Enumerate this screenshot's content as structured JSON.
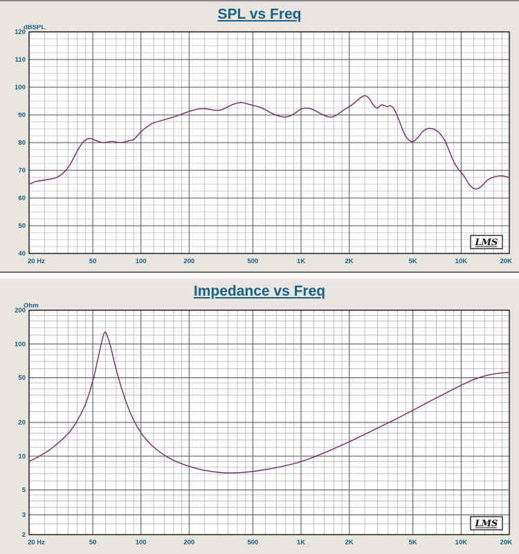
{
  "palette": {
    "background": "#e9e6e0",
    "plot_background": "#ffffff",
    "accent": "#1b6080",
    "curve": "#6d2a66",
    "grid_minor": "#9a9a9a",
    "grid_major": "#4d4d4d",
    "frame": "#000000"
  },
  "chart_data": [
    {
      "type": "line",
      "title": "SPL vs Freq",
      "ylabel": "dBSPL",
      "xlabel": "Hz",
      "badge": "LMS",
      "x_scale": "log",
      "y_scale": "linear",
      "xlim": [
        20,
        20000
      ],
      "ylim": [
        40,
        120
      ],
      "y_minor_step": 2.5,
      "line_color": "#6d2a66",
      "x_ticks": [
        {
          "f": 20,
          "label": "20 Hz"
        },
        {
          "f": 50,
          "label": "50"
        },
        {
          "f": 100,
          "label": "100"
        },
        {
          "f": 200,
          "label": "200"
        },
        {
          "f": 500,
          "label": "500"
        },
        {
          "f": 1000,
          "label": "1K"
        },
        {
          "f": 2000,
          "label": "2K"
        },
        {
          "f": 5000,
          "label": "5K"
        },
        {
          "f": 10000,
          "label": "10K"
        },
        {
          "f": 20000,
          "label": "20K"
        }
      ],
      "y_ticks": [
        {
          "v": 120,
          "label": "120"
        },
        {
          "v": 110,
          "label": "110"
        },
        {
          "v": 100,
          "label": "100"
        },
        {
          "v": 90,
          "label": "90"
        },
        {
          "v": 80,
          "label": "80"
        },
        {
          "v": 70,
          "label": "70"
        },
        {
          "v": 60,
          "label": "60"
        },
        {
          "v": 50,
          "label": "50"
        },
        {
          "v": 40,
          "label": "40"
        }
      ],
      "series": [
        {
          "name": "spl",
          "points": [
            [
              20,
              65
            ],
            [
              22,
              66
            ],
            [
              25,
              66.5
            ],
            [
              28,
              67
            ],
            [
              30,
              67.5
            ],
            [
              32,
              68.5
            ],
            [
              34,
              70
            ],
            [
              36,
              72
            ],
            [
              38,
              74.5
            ],
            [
              40,
              77
            ],
            [
              42,
              79
            ],
            [
              44,
              80.5
            ],
            [
              46,
              81.3
            ],
            [
              48,
              81.5
            ],
            [
              50,
              81.3
            ],
            [
              52,
              80.8
            ],
            [
              55,
              80.3
            ],
            [
              58,
              80
            ],
            [
              62,
              80.2
            ],
            [
              66,
              80.5
            ],
            [
              70,
              80.2
            ],
            [
              75,
              80
            ],
            [
              80,
              80.3
            ],
            [
              85,
              80.8
            ],
            [
              90,
              81
            ],
            [
              95,
              82.5
            ],
            [
              100,
              84
            ],
            [
              108,
              85.5
            ],
            [
              116,
              86.8
            ],
            [
              125,
              87.5
            ],
            [
              135,
              88
            ],
            [
              150,
              88.8
            ],
            [
              165,
              89.5
            ],
            [
              180,
              90.3
            ],
            [
              200,
              91.3
            ],
            [
              215,
              91.8
            ],
            [
              230,
              92.2
            ],
            [
              250,
              92.3
            ],
            [
              270,
              92
            ],
            [
              290,
              91.6
            ],
            [
              310,
              91.7
            ],
            [
              330,
              92.2
            ],
            [
              350,
              93
            ],
            [
              375,
              93.8
            ],
            [
              400,
              94.3
            ],
            [
              425,
              94.5
            ],
            [
              450,
              94.2
            ],
            [
              475,
              93.8
            ],
            [
              500,
              93.5
            ],
            [
              540,
              93
            ],
            [
              580,
              92.3
            ],
            [
              620,
              91.4
            ],
            [
              660,
              90.5
            ],
            [
              700,
              89.9
            ],
            [
              750,
              89.4
            ],
            [
              800,
              89.2
            ],
            [
              850,
              89.6
            ],
            [
              900,
              90.3
            ],
            [
              950,
              91.3
            ],
            [
              1000,
              92.2
            ],
            [
              1060,
              92.5
            ],
            [
              1120,
              92.4
            ],
            [
              1180,
              92
            ],
            [
              1250,
              91.3
            ],
            [
              1320,
              90.5
            ],
            [
              1400,
              89.8
            ],
            [
              1480,
              89.3
            ],
            [
              1560,
              89.2
            ],
            [
              1650,
              89.8
            ],
            [
              1750,
              90.8
            ],
            [
              1850,
              91.8
            ],
            [
              2000,
              93
            ],
            [
              2120,
              94
            ],
            [
              2250,
              95.3
            ],
            [
              2400,
              96.6
            ],
            [
              2500,
              97
            ],
            [
              2600,
              96.6
            ],
            [
              2700,
              95.5
            ],
            [
              2800,
              94
            ],
            [
              2900,
              92.8
            ],
            [
              3000,
              92.4
            ],
            [
              3100,
              93.2
            ],
            [
              3200,
              93.7
            ],
            [
              3300,
              93.4
            ],
            [
              3450,
              93
            ],
            [
              3600,
              93.4
            ],
            [
              3750,
              92.8
            ],
            [
              3900,
              91
            ],
            [
              4100,
              88
            ],
            [
              4300,
              84.8
            ],
            [
              4500,
              82.3
            ],
            [
              4700,
              81
            ],
            [
              4900,
              80.3
            ],
            [
              5100,
              80.6
            ],
            [
              5400,
              82
            ],
            [
              5700,
              83.8
            ],
            [
              6000,
              84.8
            ],
            [
              6300,
              85.2
            ],
            [
              6700,
              85
            ],
            [
              7100,
              84.2
            ],
            [
              7500,
              82.8
            ],
            [
              8000,
              80.3
            ],
            [
              8500,
              76.5
            ],
            [
              9000,
              73
            ],
            [
              9500,
              70.8
            ],
            [
              10000,
              69.3
            ],
            [
              10600,
              67.3
            ],
            [
              11200,
              65
            ],
            [
              11800,
              63.6
            ],
            [
              12400,
              63.2
            ],
            [
              13000,
              63.6
            ],
            [
              13700,
              64.8
            ],
            [
              14500,
              66.3
            ],
            [
              15300,
              67.2
            ],
            [
              16200,
              67.7
            ],
            [
              17100,
              68
            ],
            [
              18000,
              68
            ],
            [
              19000,
              67.8
            ],
            [
              20000,
              67.3
            ]
          ]
        }
      ]
    },
    {
      "type": "line",
      "title": "Impedance vs Freq",
      "ylabel": "Ohm",
      "xlabel": "Hz",
      "badge": "LMS",
      "x_scale": "log",
      "y_scale": "log",
      "xlim": [
        20,
        20000
      ],
      "ylim": [
        2,
        200
      ],
      "line_color": "#6d2a66",
      "x_ticks": [
        {
          "f": 20,
          "label": "20 Hz"
        },
        {
          "f": 50,
          "label": "50"
        },
        {
          "f": 100,
          "label": "100"
        },
        {
          "f": 200,
          "label": "200"
        },
        {
          "f": 500,
          "label": "500"
        },
        {
          "f": 1000,
          "label": "1K"
        },
        {
          "f": 2000,
          "label": "2K"
        },
        {
          "f": 5000,
          "label": "5K"
        },
        {
          "f": 10000,
          "label": "10K"
        },
        {
          "f": 20000,
          "label": "20K"
        }
      ],
      "y_ticks": [
        {
          "v": 200,
          "label": "200"
        },
        {
          "v": 100,
          "label": "100"
        },
        {
          "v": 50,
          "label": "50"
        },
        {
          "v": 20,
          "label": "20"
        },
        {
          "v": 10,
          "label": "10"
        },
        {
          "v": 5,
          "label": "5"
        },
        {
          "v": 3,
          "label": "3"
        },
        {
          "v": 2,
          "label": "2"
        }
      ],
      "series": [
        {
          "name": "impedance",
          "points": [
            [
              20,
              9
            ],
            [
              22,
              9.6
            ],
            [
              24,
              10.3
            ],
            [
              26,
              11
            ],
            [
              28,
              11.9
            ],
            [
              30,
              12.9
            ],
            [
              33,
              14.5
            ],
            [
              36,
              16.6
            ],
            [
              39,
              19.5
            ],
            [
              42,
              23.5
            ],
            [
              45,
              29
            ],
            [
              48,
              38
            ],
            [
              51,
              52
            ],
            [
              54,
              75
            ],
            [
              56,
              95
            ],
            [
              58,
              118
            ],
            [
              59,
              126
            ],
            [
              60,
              128
            ],
            [
              61,
              123
            ],
            [
              63,
              108
            ],
            [
              65,
              92
            ],
            [
              68,
              70
            ],
            [
              71,
              55
            ],
            [
              75,
              42
            ],
            [
              80,
              31.5
            ],
            [
              85,
              25
            ],
            [
              90,
              21
            ],
            [
              96,
              17.7
            ],
            [
              102,
              15.5
            ],
            [
              110,
              13.6
            ],
            [
              118,
              12.3
            ],
            [
              126,
              11.4
            ],
            [
              135,
              10.6
            ],
            [
              145,
              9.9
            ],
            [
              155,
              9.4
            ],
            [
              168,
              8.9
            ],
            [
              182,
              8.5
            ],
            [
              200,
              8.1
            ],
            [
              220,
              7.8
            ],
            [
              245,
              7.5
            ],
            [
              270,
              7.35
            ],
            [
              300,
              7.2
            ],
            [
              335,
              7.1
            ],
            [
              375,
              7.1
            ],
            [
              420,
              7.15
            ],
            [
              470,
              7.25
            ],
            [
              530,
              7.4
            ],
            [
              600,
              7.6
            ],
            [
              680,
              7.85
            ],
            [
              760,
              8.1
            ],
            [
              850,
              8.4
            ],
            [
              950,
              8.75
            ],
            [
              1060,
              9.2
            ],
            [
              1200,
              9.8
            ],
            [
              1350,
              10.5
            ],
            [
              1500,
              11.2
            ],
            [
              1700,
              12.1
            ],
            [
              1900,
              13
            ],
            [
              2100,
              13.9
            ],
            [
              2400,
              15.2
            ],
            [
              2700,
              16.5
            ],
            [
              3000,
              17.8
            ],
            [
              3400,
              19.4
            ],
            [
              3800,
              21
            ],
            [
              4300,
              23
            ],
            [
              4800,
              24.9
            ],
            [
              5400,
              27.2
            ],
            [
              6000,
              29.5
            ],
            [
              6700,
              32
            ],
            [
              7500,
              34.8
            ],
            [
              8400,
              37.8
            ],
            [
              9400,
              41
            ],
            [
              10500,
              44.3
            ],
            [
              11800,
              47.8
            ],
            [
              13200,
              50.7
            ],
            [
              14800,
              52.9
            ],
            [
              16500,
              54.4
            ],
            [
              18200,
              55.3
            ],
            [
              20000,
              56
            ]
          ]
        }
      ]
    }
  ]
}
